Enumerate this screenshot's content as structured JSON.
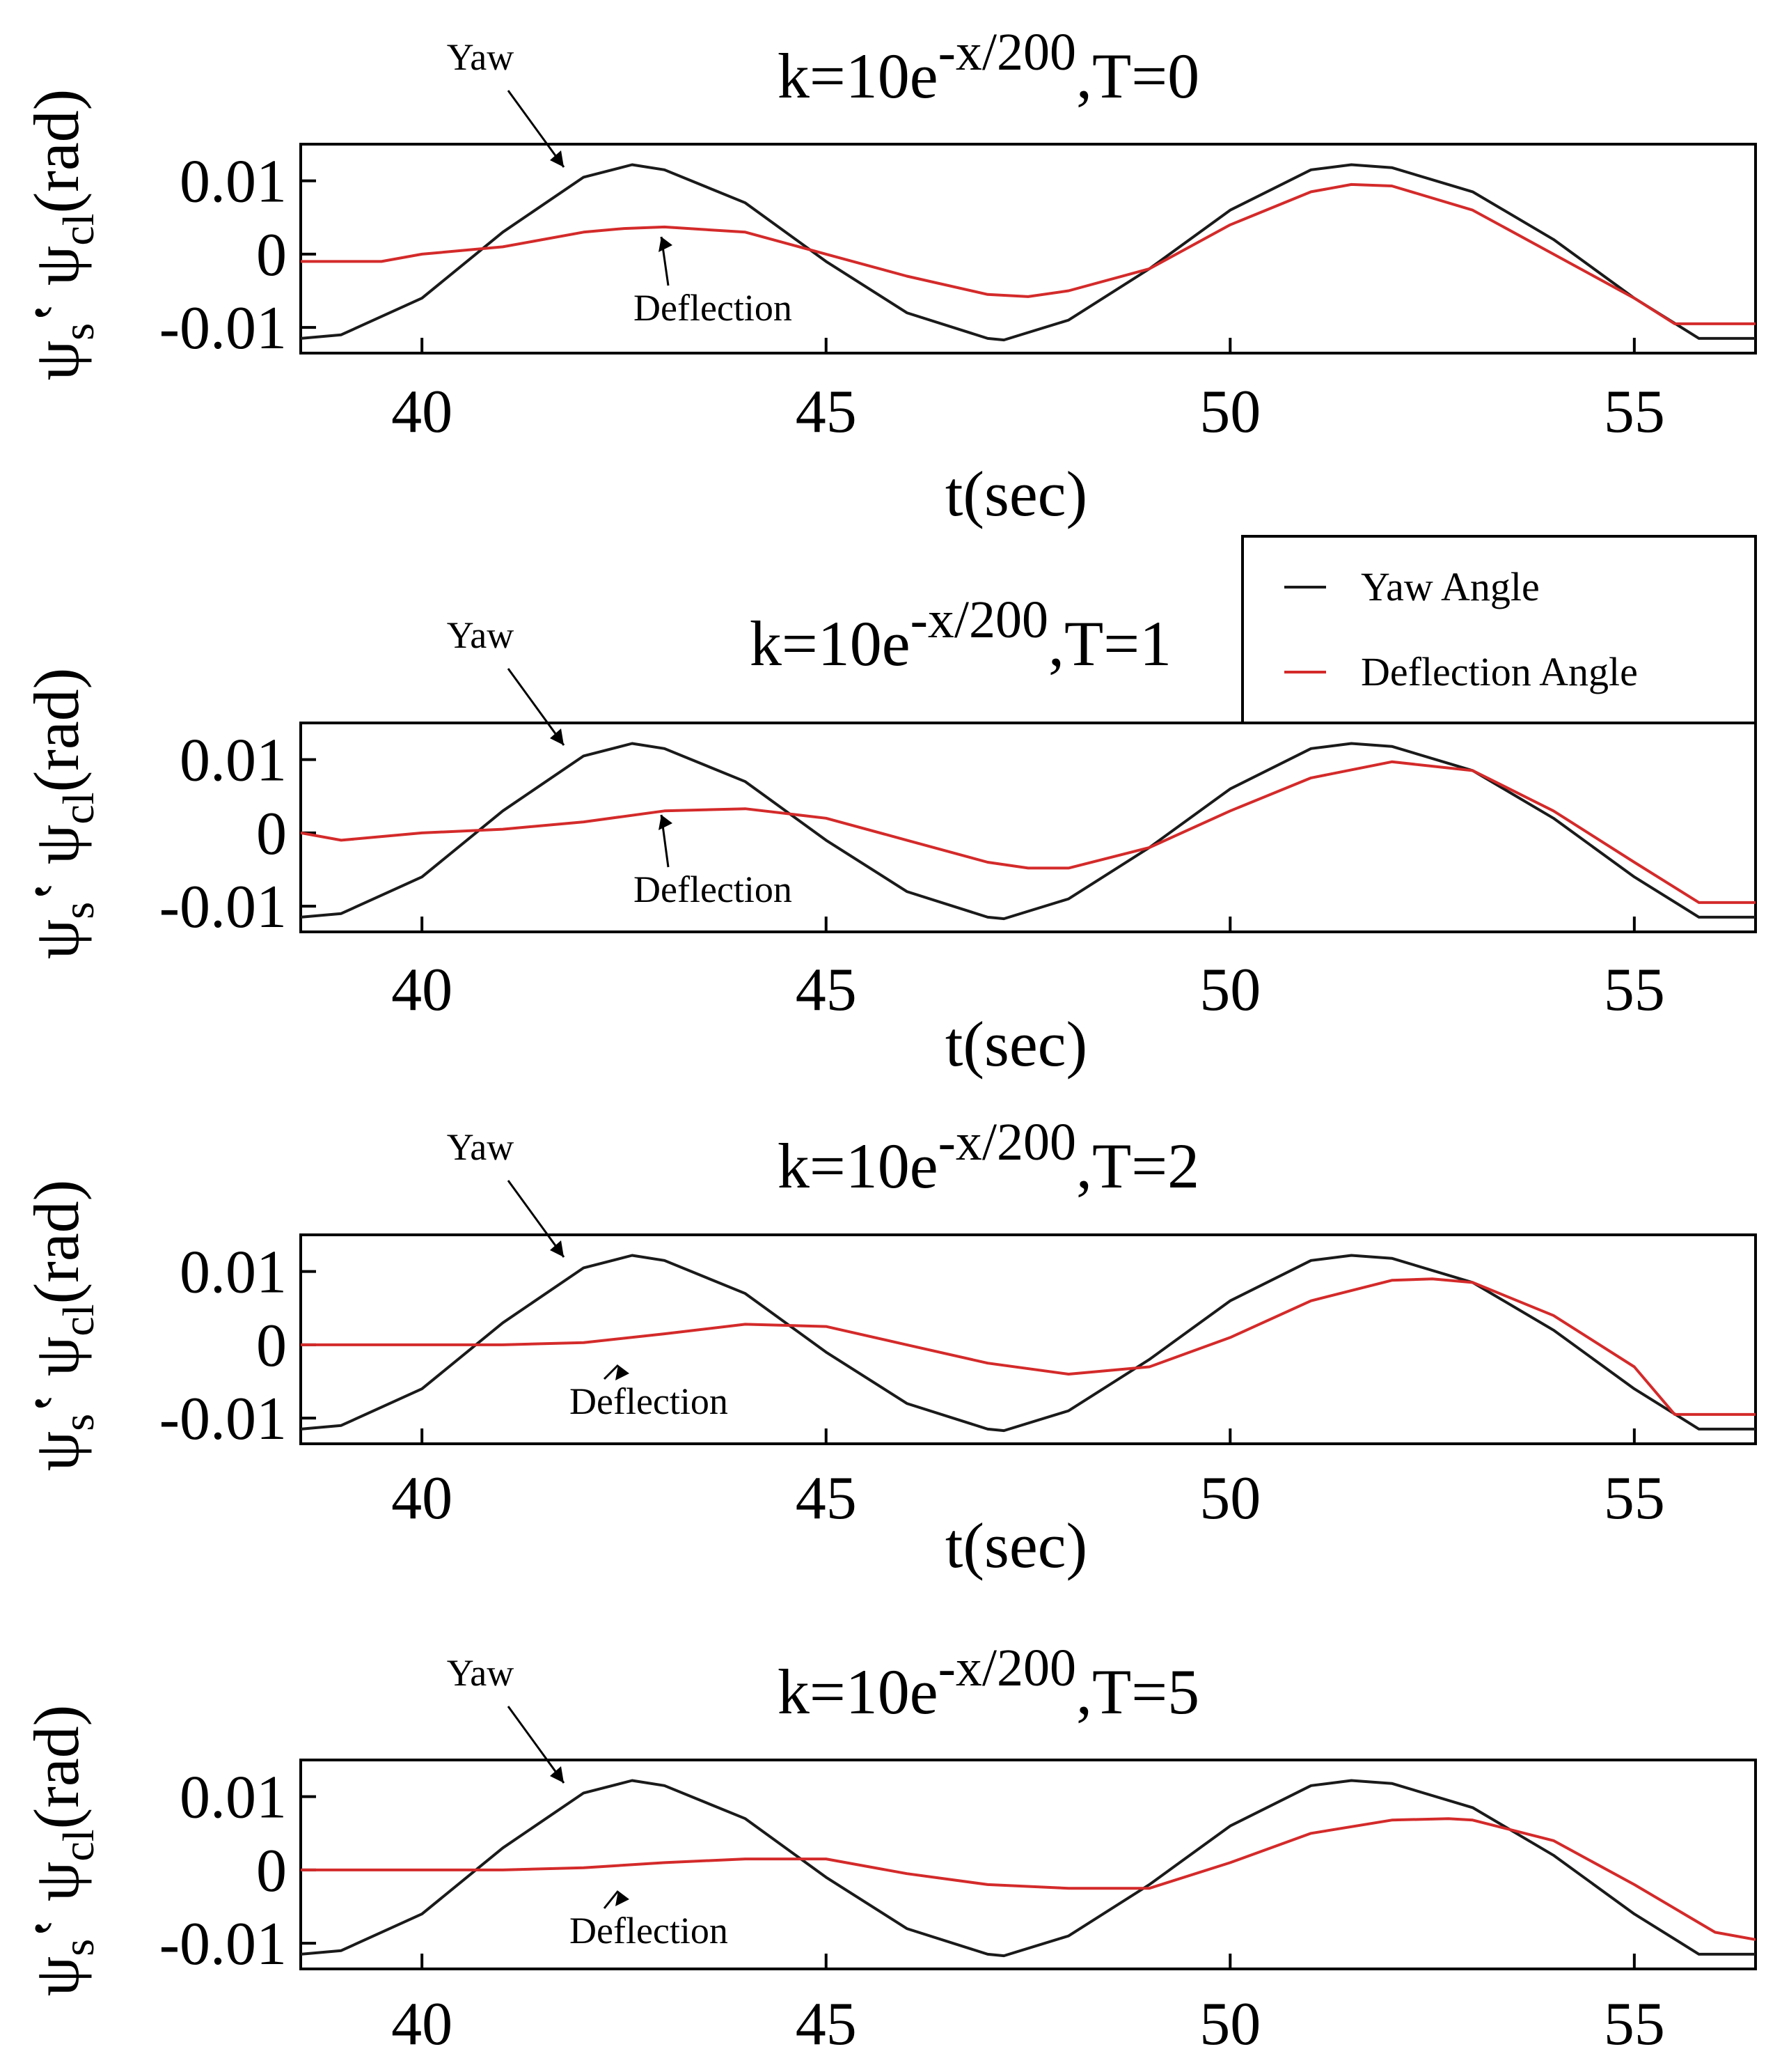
{
  "figure": {
    "y_label_parts": [
      "ψ",
      "s",
      "ʽ",
      "ψ",
      "cl",
      "(rad)"
    ],
    "legend": {
      "yaw": "Yaw Angle",
      "deflection": "Deflection  Angle"
    },
    "colors": {
      "yaw": "#1a1a1a",
      "deflection": "#d42a2a",
      "axis": "#000000"
    }
  },
  "chart_data": [
    {
      "type": "line",
      "title_parts": [
        "k=10e",
        "-x/200",
        ",T=0"
      ],
      "xlabel": "t(sec)",
      "ylabel": "ψsʽ ψcl(rad)",
      "xlim": [
        38.5,
        56.5
      ],
      "ylim": [
        -0.0135,
        0.015
      ],
      "xticks": [
        40,
        45,
        50,
        55
      ],
      "xtick_labels": [
        "40",
        "45",
        "50",
        "55"
      ],
      "yticks": [
        0.01,
        0,
        -0.01
      ],
      "ytick_labels": [
        "0.01",
        "0",
        "-0.01"
      ],
      "annotations": {
        "yaw": "Yaw",
        "deflection": "Deflection"
      },
      "series": [
        {
          "name": "Yaw Angle",
          "x": [
            38.5,
            39,
            40,
            41,
            42,
            42.6,
            43,
            44,
            45,
            46,
            47,
            47.2,
            48,
            49,
            50,
            51,
            51.5,
            52,
            53,
            54,
            55,
            55.8,
            56.5
          ],
          "values": [
            -0.0115,
            -0.011,
            -0.006,
            0.003,
            0.0105,
            0.0122,
            0.0115,
            0.007,
            -0.001,
            -0.008,
            -0.0115,
            -0.0117,
            -0.009,
            -0.002,
            0.006,
            0.0115,
            0.0122,
            0.0118,
            0.0085,
            0.002,
            -0.006,
            -0.0115,
            -0.0115
          ]
        },
        {
          "name": "Deflection  Angle",
          "x": [
            38.5,
            39.5,
            40,
            41,
            42,
            42.5,
            43,
            44,
            45,
            46,
            47,
            47.5,
            48,
            49,
            50,
            51,
            51.5,
            52,
            53,
            54,
            55,
            55.5,
            56.5
          ],
          "values": [
            -0.001,
            -0.001,
            0,
            0.001,
            0.003,
            0.0035,
            0.0037,
            0.003,
            0,
            -0.003,
            -0.0055,
            -0.0058,
            -0.005,
            -0.002,
            0.004,
            0.0085,
            0.0095,
            0.0093,
            0.006,
            0,
            -0.006,
            -0.0095,
            -0.0095
          ]
        }
      ]
    },
    {
      "type": "line",
      "title_parts": [
        "k=10e",
        "-x/200",
        ",T=1"
      ],
      "xlabel": "t(sec)",
      "ylabel": "ψsʽ ψcl(rad)",
      "xlim": [
        38.5,
        56.5
      ],
      "ylim": [
        -0.0135,
        0.015
      ],
      "xticks": [
        40,
        45,
        50,
        55
      ],
      "xtick_labels": [
        "40",
        "45",
        "50",
        "55"
      ],
      "yticks": [
        0.01,
        0,
        -0.01
      ],
      "ytick_labels": [
        "0.01",
        "0",
        "-0.01"
      ],
      "annotations": {
        "yaw": "Yaw",
        "deflection": "Deflection"
      },
      "series": [
        {
          "name": "Yaw Angle",
          "x": [
            38.5,
            39,
            40,
            41,
            42,
            42.6,
            43,
            44,
            45,
            46,
            47,
            47.2,
            48,
            49,
            50,
            51,
            51.5,
            52,
            53,
            54,
            55,
            55.8,
            56.5
          ],
          "values": [
            -0.0115,
            -0.011,
            -0.006,
            0.003,
            0.0105,
            0.0122,
            0.0115,
            0.007,
            -0.001,
            -0.008,
            -0.0115,
            -0.0117,
            -0.009,
            -0.002,
            0.006,
            0.0115,
            0.0122,
            0.0118,
            0.0085,
            0.002,
            -0.006,
            -0.0115,
            -0.0115
          ]
        },
        {
          "name": "Deflection  Angle",
          "x": [
            38.5,
            39,
            40,
            41,
            42,
            43,
            44,
            45,
            46,
            47,
            47.5,
            48,
            49,
            50,
            51,
            52,
            53,
            54,
            55,
            55.8,
            56.5
          ],
          "values": [
            0,
            -0.001,
            0,
            0.0005,
            0.0015,
            0.003,
            0.0033,
            0.002,
            -0.001,
            -0.004,
            -0.0048,
            -0.0048,
            -0.002,
            0.003,
            0.0075,
            0.0097,
            0.0085,
            0.003,
            -0.004,
            -0.0095,
            -0.0095
          ]
        }
      ]
    },
    {
      "type": "line",
      "title_parts": [
        "k=10e",
        "-x/200",
        ",T=2"
      ],
      "xlabel": "t(sec)",
      "ylabel": "ψsʽ ψcl(rad)",
      "xlim": [
        38.5,
        56.5
      ],
      "ylim": [
        -0.0135,
        0.015
      ],
      "xticks": [
        40,
        45,
        50,
        55
      ],
      "xtick_labels": [
        "40",
        "45",
        "50",
        "55"
      ],
      "yticks": [
        0.01,
        0,
        -0.01
      ],
      "ytick_labels": [
        "0.01",
        "0",
        "-0.01"
      ],
      "annotations": {
        "yaw": "Yaw",
        "deflection": "Deflection"
      },
      "series": [
        {
          "name": "Yaw Angle",
          "x": [
            38.5,
            39,
            40,
            41,
            42,
            42.6,
            43,
            44,
            45,
            46,
            47,
            47.2,
            48,
            49,
            50,
            51,
            51.5,
            52,
            53,
            54,
            55,
            55.8,
            56.5
          ],
          "values": [
            -0.0115,
            -0.011,
            -0.006,
            0.003,
            0.0105,
            0.0122,
            0.0115,
            0.007,
            -0.001,
            -0.008,
            -0.0115,
            -0.0117,
            -0.009,
            -0.002,
            0.006,
            0.0115,
            0.0122,
            0.0118,
            0.0085,
            0.002,
            -0.006,
            -0.0115,
            -0.0115
          ]
        },
        {
          "name": "Deflection  Angle",
          "x": [
            38.5,
            40,
            41,
            42,
            43,
            44,
            45,
            46,
            47,
            48,
            49,
            50,
            51,
            52,
            52.5,
            53,
            54,
            55,
            55.5,
            56.5
          ],
          "values": [
            0,
            0,
            0,
            0.0003,
            0.0015,
            0.0028,
            0.0025,
            0,
            -0.0025,
            -0.004,
            -0.003,
            0.001,
            0.006,
            0.0088,
            0.009,
            0.0085,
            0.004,
            -0.003,
            -0.0095,
            -0.0095
          ]
        }
      ]
    },
    {
      "type": "line",
      "title_parts": [
        "k=10e",
        "-x/200",
        ",T=5"
      ],
      "xlabel": "",
      "ylabel": "ψsʽ ψcl(rad)",
      "xlim": [
        38.5,
        56.5
      ],
      "ylim": [
        -0.0135,
        0.015
      ],
      "xticks": [
        40,
        45,
        50,
        55
      ],
      "xtick_labels": [
        "40",
        "45",
        "50",
        "55"
      ],
      "yticks": [
        0.01,
        0,
        -0.01
      ],
      "ytick_labels": [
        "0.01",
        "0",
        "-0.01"
      ],
      "annotations": {
        "yaw": "Yaw",
        "deflection": "Deflection"
      },
      "series": [
        {
          "name": "Yaw Angle",
          "x": [
            38.5,
            39,
            40,
            41,
            42,
            42.6,
            43,
            44,
            45,
            46,
            47,
            47.2,
            48,
            49,
            50,
            51,
            51.5,
            52,
            53,
            54,
            55,
            55.8,
            56.5
          ],
          "values": [
            -0.0115,
            -0.011,
            -0.006,
            0.003,
            0.0105,
            0.0122,
            0.0115,
            0.007,
            -0.001,
            -0.008,
            -0.0115,
            -0.0117,
            -0.009,
            -0.002,
            0.006,
            0.0115,
            0.0122,
            0.0118,
            0.0085,
            0.002,
            -0.006,
            -0.0115,
            -0.0115
          ]
        },
        {
          "name": "Deflection  Angle",
          "x": [
            38.5,
            40,
            41,
            42,
            43,
            44,
            45,
            46,
            47,
            48,
            49,
            50,
            51,
            52,
            52.7,
            53,
            54,
            55,
            56,
            56.5
          ],
          "values": [
            0,
            0,
            0,
            0.0003,
            0.001,
            0.0015,
            0.0015,
            -0.0005,
            -0.002,
            -0.0025,
            -0.0025,
            0.001,
            0.005,
            0.0068,
            0.007,
            0.0068,
            0.004,
            -0.002,
            -0.0085,
            -0.0095
          ]
        }
      ]
    }
  ]
}
